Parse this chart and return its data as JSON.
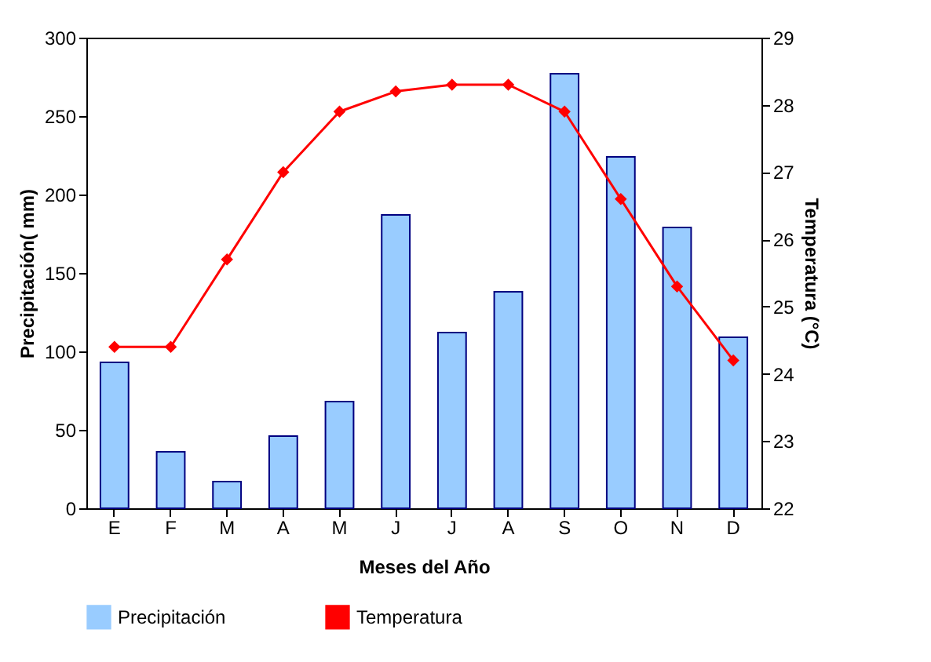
{
  "chart_data": {
    "type": "bar",
    "xlabel": "Meses del Año",
    "ylabel": "Precipitación( mm)",
    "y2label": "Temperatura (°C)",
    "categories": [
      "E",
      "F",
      "M",
      "A",
      "M",
      "J",
      "J",
      "A",
      "S",
      "O",
      "N",
      "D"
    ],
    "series": [
      {
        "name": "Precipitación",
        "color": "#99ccff",
        "values": [
          93,
          36,
          17,
          46,
          68,
          187,
          112,
          138,
          277,
          224,
          179,
          109
        ]
      },
      {
        "name": "Temperatura",
        "type": "line",
        "axis": "y2",
        "color": "#ff0000",
        "marker": "diamond",
        "values": [
          24.4,
          24.4,
          25.7,
          27.0,
          27.9,
          28.2,
          28.3,
          28.3,
          27.9,
          26.6,
          25.3,
          24.2
        ]
      }
    ],
    "ylim": [
      0,
      300
    ],
    "yticks": [
      0,
      50,
      100,
      150,
      200,
      250,
      300
    ],
    "y2lim": [
      22,
      29
    ],
    "y2ticks": [
      22,
      23,
      24,
      25,
      26,
      27,
      28,
      29
    ],
    "grid": false,
    "legend": "bottom"
  }
}
